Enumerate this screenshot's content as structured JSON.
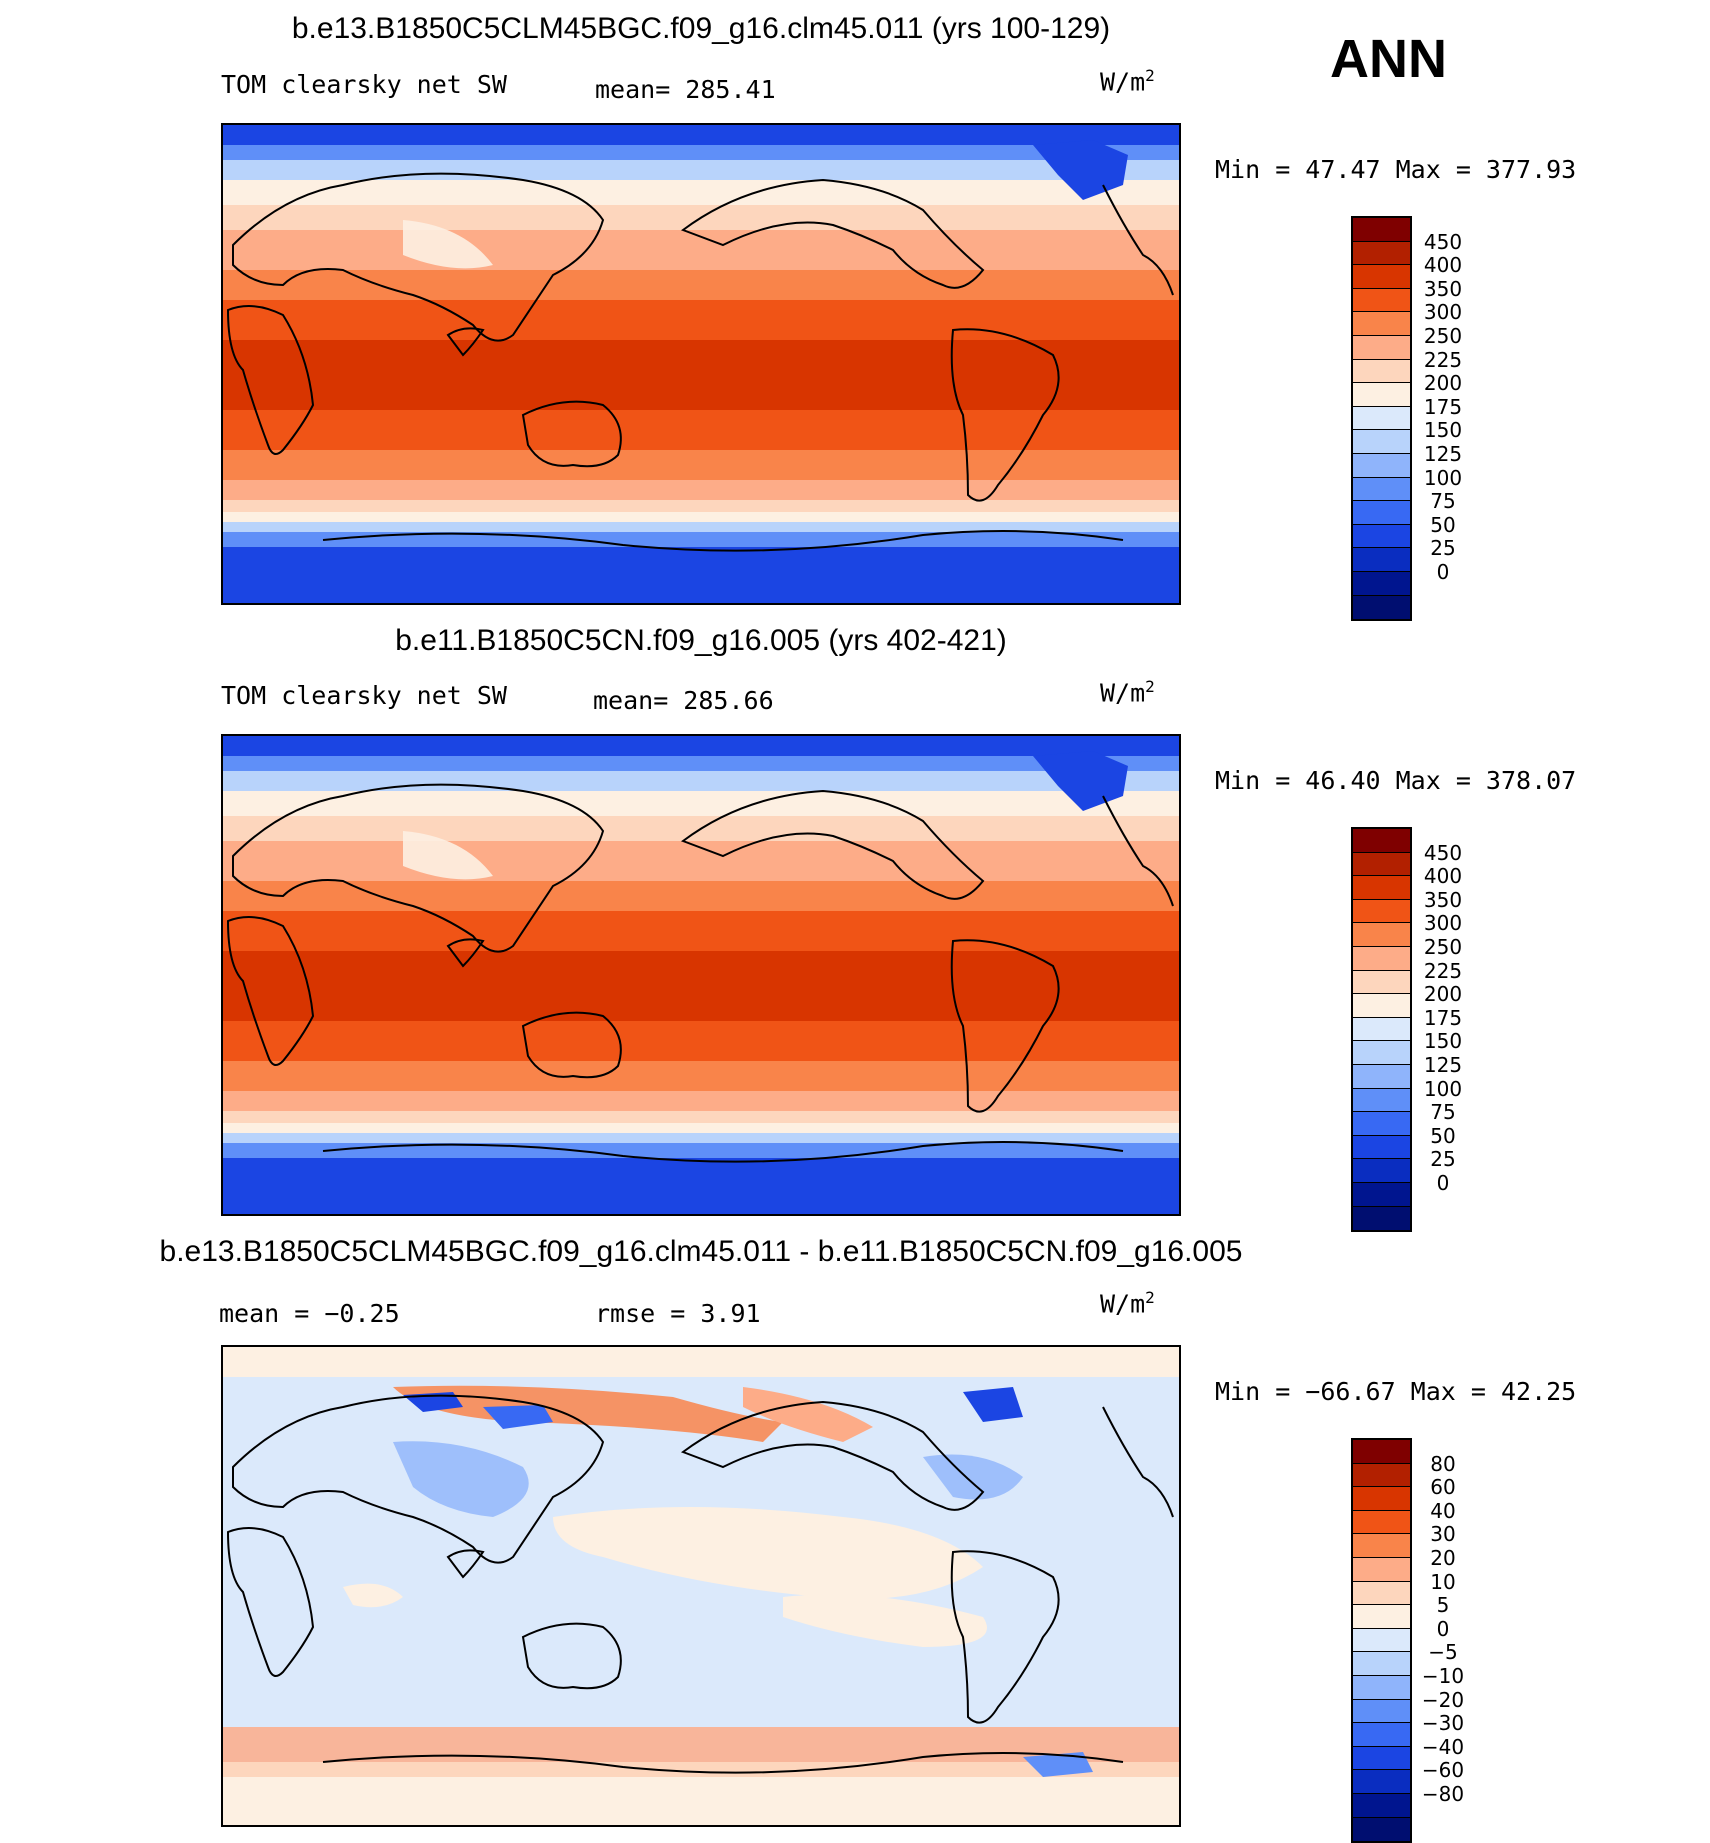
{
  "season": "ANN",
  "panels": [
    {
      "title": "b.e13.B1850C5CLM45BGC.f09_g16.clm45.011 (yrs 100-129)",
      "left_label": "TOM clearsky net SW",
      "mean_label": "mean= 285.41",
      "unit_base": "W/m",
      "unit_sup": "2",
      "minmax": "Min =   47.47 Max =  377.93",
      "colorbar": {
        "colors": [
          "#7f0000",
          "#b22000",
          "#d83500",
          "#f05416",
          "#f9844a",
          "#fdac88",
          "#fdd6bd",
          "#fdf0e2",
          "#dbe9fb",
          "#b8d3fb",
          "#8fb4fb",
          "#5f8ff8",
          "#3869f3",
          "#1b45e3",
          "#0a2dc0",
          "#00158f",
          "#000e70"
        ],
        "ticks": [
          "450",
          "400",
          "350",
          "300",
          "250",
          "225",
          "200",
          "175",
          "150",
          "125",
          "100",
          "75",
          "50",
          "25",
          "0"
        ]
      }
    },
    {
      "title": "b.e11.B1850C5CN.f09_g16.005 (yrs 402-421)",
      "left_label": "TOM clearsky net SW",
      "mean_label": "mean= 285.66",
      "unit_base": "W/m",
      "unit_sup": "2",
      "minmax": "Min =   46.40 Max =  378.07",
      "colorbar": {
        "colors": [
          "#7f0000",
          "#b22000",
          "#d83500",
          "#f05416",
          "#f9844a",
          "#fdac88",
          "#fdd6bd",
          "#fdf0e2",
          "#dbe9fb",
          "#b8d3fb",
          "#8fb4fb",
          "#5f8ff8",
          "#3869f3",
          "#1b45e3",
          "#0a2dc0",
          "#00158f",
          "#000e70"
        ],
        "ticks": [
          "450",
          "400",
          "350",
          "300",
          "250",
          "225",
          "200",
          "175",
          "150",
          "125",
          "100",
          "75",
          "50",
          "25",
          "0"
        ]
      }
    },
    {
      "title": "b.e13.B1850C5CLM45BGC.f09_g16.clm45.011 - b.e11.B1850C5CN.f09_g16.005",
      "left_label": "mean =   −0.25",
      "mean_label": "rmse =     3.91",
      "unit_base": "W/m",
      "unit_sup": "2",
      "minmax": "Min = −66.67 Max =   42.25",
      "colorbar": {
        "colors": [
          "#7f0000",
          "#b22000",
          "#d83500",
          "#f05416",
          "#f9844a",
          "#fdac88",
          "#fdd6bd",
          "#fdf0e2",
          "#dbe9fb",
          "#b8d3fb",
          "#8fb4fb",
          "#5f8ff8",
          "#3869f3",
          "#1b45e3",
          "#0a2dc0",
          "#00158f",
          "#000e70"
        ],
        "ticks": [
          "80",
          "60",
          "40",
          "30",
          "20",
          "10",
          "5",
          "0",
          "−5",
          "−10",
          "−20",
          "−30",
          "−40",
          "−60",
          "−80"
        ]
      }
    }
  ],
  "chart_data": [
    {
      "type": "heatmap",
      "title": "b.e13.B1850C5CLM45BGC.f09_g16.clm45.011 (yrs 100-129)",
      "variable": "TOM clearsky net SW",
      "units": "W/m2",
      "mean": 285.41,
      "min": 47.47,
      "max": 377.93,
      "levels": [
        0,
        25,
        50,
        75,
        100,
        125,
        150,
        175,
        200,
        225,
        250,
        300,
        350,
        400,
        450
      ]
    },
    {
      "type": "heatmap",
      "title": "b.e11.B1850C5CN.f09_g16.005 (yrs 402-421)",
      "variable": "TOM clearsky net SW",
      "units": "W/m2",
      "mean": 285.66,
      "min": 46.4,
      "max": 378.07,
      "levels": [
        0,
        25,
        50,
        75,
        100,
        125,
        150,
        175,
        200,
        225,
        250,
        300,
        350,
        400,
        450
      ]
    },
    {
      "type": "heatmap",
      "title": "b.e13.B1850C5CLM45BGC.f09_g16.clm45.011 - b.e11.B1850C5CN.f09_g16.005",
      "units": "W/m2",
      "mean": -0.25,
      "rmse": 3.91,
      "min": -66.67,
      "max": 42.25,
      "levels": [
        -80,
        -60,
        -40,
        -30,
        -20,
        -10,
        -5,
        0,
        5,
        10,
        20,
        30,
        40,
        60,
        80
      ]
    }
  ]
}
